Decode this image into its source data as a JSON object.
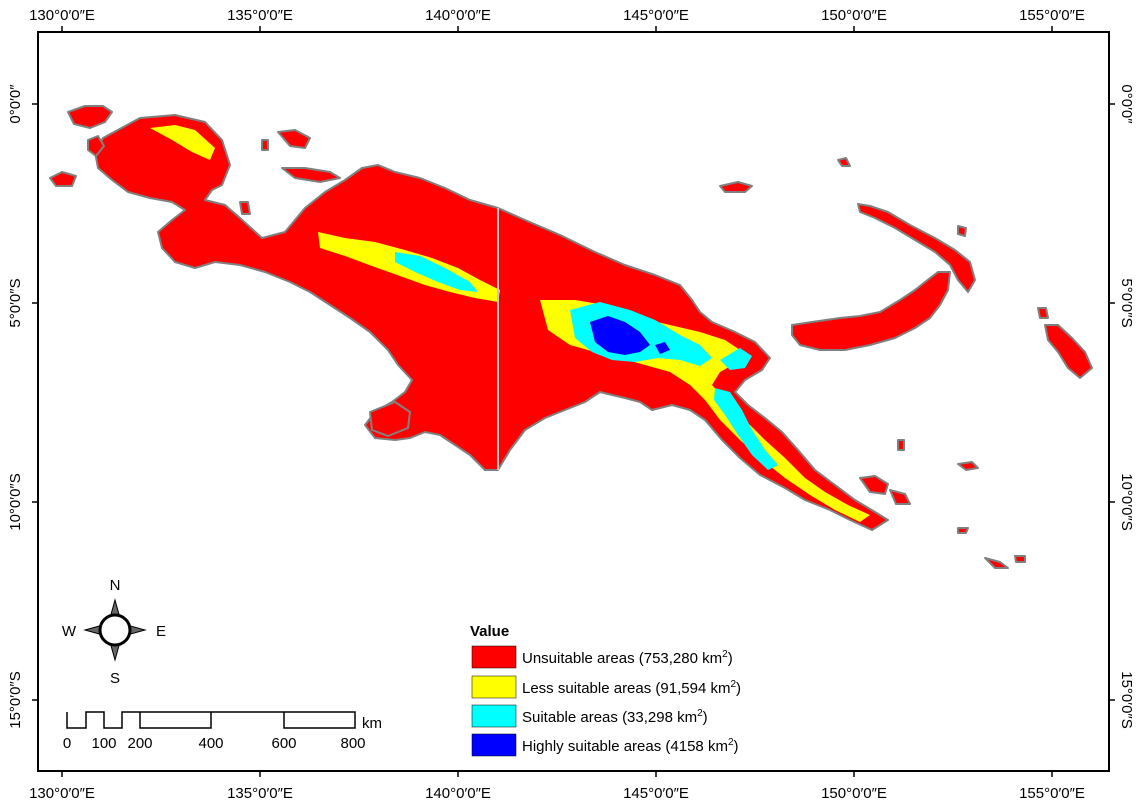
{
  "axes": {
    "top": [
      "130°0′0″E",
      "135°0′0″E",
      "140°0′0″E",
      "145°0′0″E",
      "150°0′0″E",
      "155°0′0″E"
    ],
    "bottom": [
      "130°0′0″E",
      "135°0′0″E",
      "140°0′0″E",
      "145°0′0″E",
      "150°0′0″E",
      "155°0′0″E"
    ],
    "left": [
      "0°0′0″",
      "5°0′0″S",
      "10°0′0″S",
      "15°0′0″S"
    ],
    "right": [
      "0°0′0″",
      "5°0′0″S",
      "10°0′0″S",
      "15°0′0″S"
    ]
  },
  "compass": {
    "n": "N",
    "s": "S",
    "e": "E",
    "w": "W"
  },
  "scale": {
    "labels": [
      "0",
      "100",
      "200",
      "400",
      "600",
      "800"
    ],
    "unit": "km"
  },
  "legend": {
    "title": "Value",
    "items": [
      {
        "label": "Unsuitable areas (753,280 km",
        "sup": "2",
        "tail": ")",
        "color": "#ff0000"
      },
      {
        "label": "Less suitable areas (91,594 km",
        "sup": "2",
        "tail": ")",
        "color": "#ffff00"
      },
      {
        "label": "Suitable areas (33,298 km",
        "sup": "2",
        "tail": ")",
        "color": "#00ffff"
      },
      {
        "label": "Highly suitable areas (4158 km",
        "sup": "2",
        "tail": ")",
        "color": "#0000ff"
      }
    ]
  },
  "colors": {
    "unsuitable": "#ff0000",
    "less": "#ffff00",
    "suitable": "#00ffff",
    "highly": "#0000ff",
    "coast": "#808080"
  }
}
